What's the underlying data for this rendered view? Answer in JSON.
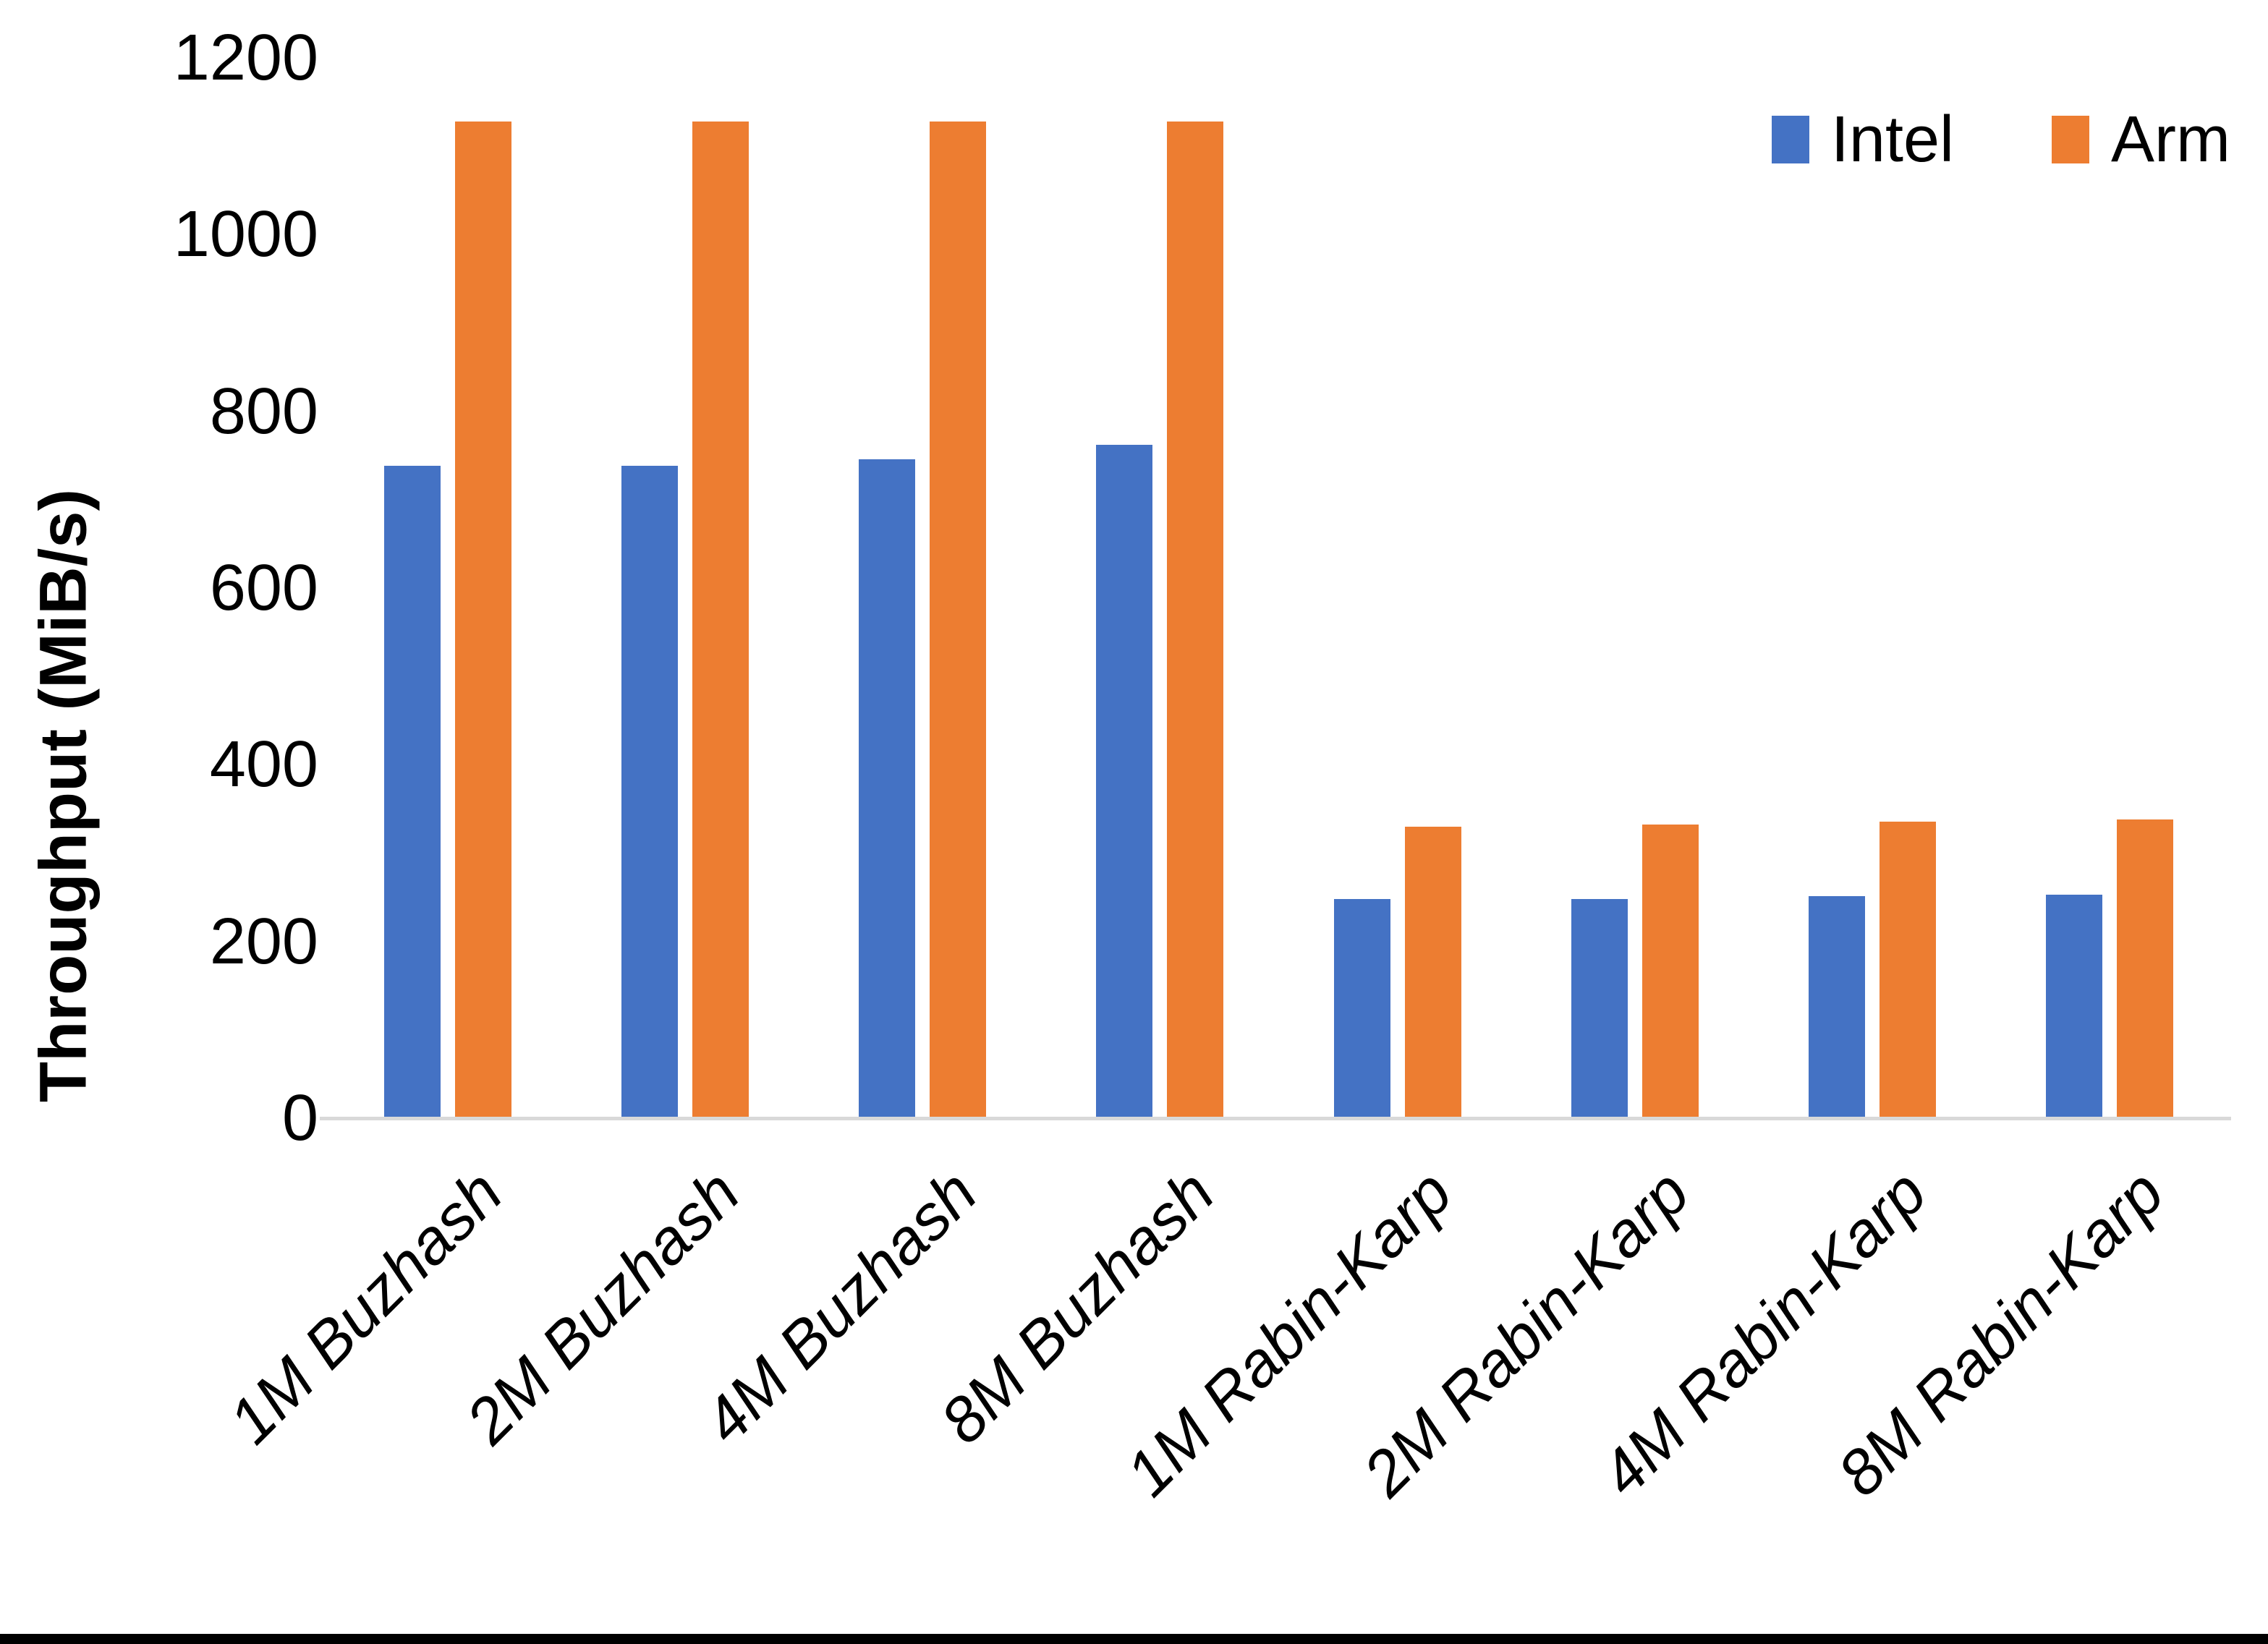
{
  "page": {
    "background": "#FFFFFF",
    "bottom_border_color": "#000000"
  },
  "chart_data": {
    "type": "bar",
    "title": "",
    "xlabel": "",
    "ylabel": "Throughput (MiB/s)",
    "ylim": [
      0,
      1200
    ],
    "yticks": [
      0,
      200,
      400,
      600,
      800,
      1000,
      1200
    ],
    "grid": false,
    "legend_position": "top-right",
    "axis_line_color": "#D9D9D9",
    "text_color": "#000000",
    "categories": [
      "1M Buzhash",
      "2M Buzhash",
      "4M Buzhash",
      "8M Buzhash",
      "1M Rabin-Karp",
      "2M Rabin-Karp",
      "4M Rabin-Karp",
      "8M Rabin-Karp"
    ],
    "series": [
      {
        "name": "Intel",
        "color": "#4472C4",
        "values": [
          738,
          738,
          746,
          762,
          248,
          248,
          251,
          253
        ]
      },
      {
        "name": "Arm",
        "color": "#ED7D31",
        "values": [
          1128,
          1128,
          1128,
          1128,
          330,
          332,
          336,
          338
        ]
      }
    ]
  }
}
